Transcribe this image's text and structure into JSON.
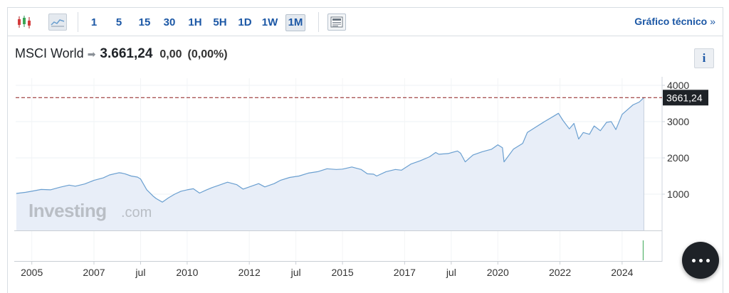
{
  "toolbar": {
    "periods": [
      "1",
      "5",
      "15",
      "30",
      "1H",
      "5H",
      "1D",
      "1W",
      "1M"
    ],
    "active_period": "1M",
    "technical_link": "Gráfico técnico",
    "technical_chevron": "»",
    "icons": [
      "candlestick-icon",
      "line-chart-icon",
      "news-panel-icon"
    ]
  },
  "quote": {
    "name": "MSCI World",
    "arrow": "➡",
    "price": "3.661,24",
    "change": "0,00",
    "change_pct": "(0,00%)"
  },
  "info_label": "i",
  "watermark": {
    "brand": "Investing",
    "suffix": ".com"
  },
  "colors": {
    "line": "#6a9fd0",
    "fill": "#e8eef8",
    "reference_line": "#8b1a1a",
    "price_label_bg": "#1e2227",
    "link": "#1b57a5",
    "volume_bar": "#3aa655"
  },
  "chart_data": {
    "type": "area",
    "title": "",
    "xlabel": "",
    "ylabel": "",
    "x_ticks": [
      "2005",
      "2007",
      "jul",
      "2010",
      "2012",
      "jul",
      "2015",
      "2017",
      "jul",
      "2020",
      "2022",
      "2024"
    ],
    "y_ticks": [
      "1000",
      "2000",
      "3000",
      "4000"
    ],
    "ylim": [
      0,
      4000
    ],
    "last_value_label": "3661,24",
    "reference_value": 3661.24,
    "grid": true,
    "series": [
      {
        "values": [
          [
            2004.5,
            1020
          ],
          [
            2004.8,
            1050
          ],
          [
            2005.0,
            1080
          ],
          [
            2005.3,
            1130
          ],
          [
            2005.6,
            1120
          ],
          [
            2005.9,
            1190
          ],
          [
            2006.2,
            1250
          ],
          [
            2006.4,
            1220
          ],
          [
            2006.7,
            1280
          ],
          [
            2007.0,
            1380
          ],
          [
            2007.3,
            1450
          ],
          [
            2007.5,
            1530
          ],
          [
            2007.8,
            1590
          ],
          [
            2007.9,
            1580
          ],
          [
            2008.0,
            1560
          ],
          [
            2008.2,
            1500
          ],
          [
            2008.4,
            1470
          ],
          [
            2008.5,
            1420
          ],
          [
            2008.7,
            1120
          ],
          [
            2008.9,
            950
          ],
          [
            2009.0,
            880
          ],
          [
            2009.2,
            780
          ],
          [
            2009.4,
            900
          ],
          [
            2009.6,
            1000
          ],
          [
            2009.8,
            1080
          ],
          [
            2010.0,
            1120
          ],
          [
            2010.2,
            1150
          ],
          [
            2010.4,
            1030
          ],
          [
            2010.6,
            1110
          ],
          [
            2010.8,
            1180
          ],
          [
            2011.0,
            1240
          ],
          [
            2011.3,
            1330
          ],
          [
            2011.6,
            1260
          ],
          [
            2011.8,
            1140
          ],
          [
            2012.0,
            1200
          ],
          [
            2012.3,
            1290
          ],
          [
            2012.5,
            1200
          ],
          [
            2012.8,
            1290
          ],
          [
            2013.0,
            1380
          ],
          [
            2013.3,
            1460
          ],
          [
            2013.6,
            1500
          ],
          [
            2013.9,
            1580
          ],
          [
            2014.2,
            1620
          ],
          [
            2014.5,
            1700
          ],
          [
            2014.8,
            1680
          ],
          [
            2015.0,
            1690
          ],
          [
            2015.3,
            1750
          ],
          [
            2015.6,
            1680
          ],
          [
            2015.8,
            1560
          ],
          [
            2016.0,
            1550
          ],
          [
            2016.1,
            1500
          ],
          [
            2016.4,
            1620
          ],
          [
            2016.7,
            1680
          ],
          [
            2016.9,
            1660
          ],
          [
            2017.2,
            1830
          ],
          [
            2017.5,
            1920
          ],
          [
            2017.8,
            2030
          ],
          [
            2018.0,
            2150
          ],
          [
            2018.1,
            2100
          ],
          [
            2018.4,
            2120
          ],
          [
            2018.7,
            2190
          ],
          [
            2018.8,
            2130
          ],
          [
            2018.95,
            1890
          ],
          [
            2019.2,
            2080
          ],
          [
            2019.5,
            2170
          ],
          [
            2019.8,
            2240
          ],
          [
            2020.0,
            2360
          ],
          [
            2020.15,
            2280
          ],
          [
            2020.2,
            1890
          ],
          [
            2020.5,
            2240
          ],
          [
            2020.8,
            2400
          ],
          [
            2020.95,
            2700
          ],
          [
            2021.2,
            2840
          ],
          [
            2021.5,
            3000
          ],
          [
            2021.8,
            3150
          ],
          [
            2021.95,
            3230
          ],
          [
            2022.1,
            3030
          ],
          [
            2022.3,
            2800
          ],
          [
            2022.45,
            2950
          ],
          [
            2022.6,
            2520
          ],
          [
            2022.75,
            2700
          ],
          [
            2022.95,
            2650
          ],
          [
            2023.1,
            2880
          ],
          [
            2023.3,
            2750
          ],
          [
            2023.5,
            2980
          ],
          [
            2023.65,
            3000
          ],
          [
            2023.8,
            2780
          ],
          [
            2024.0,
            3200
          ],
          [
            2024.2,
            3350
          ],
          [
            2024.35,
            3460
          ],
          [
            2024.55,
            3540
          ],
          [
            2024.7,
            3661.24
          ]
        ]
      }
    ]
  }
}
